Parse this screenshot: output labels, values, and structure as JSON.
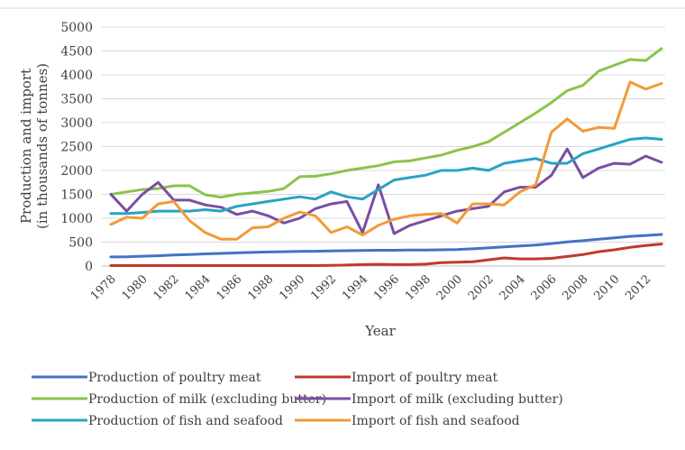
{
  "chart_data": {
    "type": "line",
    "title": "",
    "xlabel": "Year",
    "ylabel": "Production and import\n(in thousands of tonnes)",
    "ylim": [
      0,
      5000
    ],
    "y_ticks": [
      0,
      500,
      1000,
      1500,
      2000,
      2500,
      3000,
      3500,
      4000,
      4500,
      5000
    ],
    "x_tick_labels": [
      "1978",
      "1980",
      "1982",
      "1984",
      "1986",
      "1988",
      "1990",
      "1992",
      "1994",
      "1996",
      "1998",
      "2000",
      "2002",
      "2004",
      "2006",
      "2008",
      "2010",
      "2012"
    ],
    "x": [
      1978,
      1979,
      1980,
      1981,
      1982,
      1983,
      1984,
      1985,
      1986,
      1987,
      1988,
      1989,
      1990,
      1991,
      1992,
      1993,
      1994,
      1995,
      1996,
      1997,
      1998,
      1999,
      2000,
      2001,
      2002,
      2003,
      2004,
      2005,
      2006,
      2007,
      2008,
      2009,
      2010,
      2011,
      2012,
      2013
    ],
    "grid": "horizontal",
    "legend_position": "bottom",
    "series": [
      {
        "name": "Production of poultry meat",
        "color": "#4472C4",
        "values": [
          190,
          195,
          205,
          215,
          230,
          240,
          255,
          265,
          275,
          285,
          295,
          300,
          305,
          310,
          315,
          320,
          325,
          330,
          330,
          335,
          335,
          340,
          345,
          360,
          380,
          400,
          420,
          440,
          470,
          505,
          530,
          560,
          590,
          620,
          640,
          660
        ]
      },
      {
        "name": "Import of poultry meat",
        "color": "#C0392B",
        "values": [
          10,
          10,
          10,
          10,
          10,
          10,
          10,
          10,
          10,
          10,
          10,
          10,
          10,
          10,
          15,
          20,
          30,
          35,
          30,
          30,
          40,
          70,
          80,
          90,
          130,
          170,
          150,
          150,
          160,
          200,
          240,
          300,
          340,
          390,
          430,
          460
        ]
      },
      {
        "name": "Production of milk (excluding butter)",
        "color": "#8BC34A",
        "values": [
          1500,
          1550,
          1600,
          1620,
          1680,
          1680,
          1490,
          1440,
          1500,
          1530,
          1560,
          1620,
          1870,
          1880,
          1930,
          2000,
          2050,
          2100,
          2180,
          2200,
          2260,
          2320,
          2420,
          2500,
          2600,
          2800,
          3000,
          3200,
          3420,
          3670,
          3780,
          4080,
          4200,
          4320,
          4300,
          4550
        ]
      },
      {
        "name": "Import of milk (excluding butter)",
        "color": "#7B4EA3",
        "values": [
          1500,
          1150,
          1500,
          1750,
          1380,
          1380,
          1280,
          1230,
          1080,
          1150,
          1050,
          900,
          1000,
          1200,
          1300,
          1350,
          700,
          1700,
          680,
          850,
          950,
          1050,
          1150,
          1200,
          1250,
          1550,
          1650,
          1650,
          1900,
          2450,
          1850,
          2050,
          2150,
          2130,
          2300,
          2170
        ]
      },
      {
        "name": "Production of fish and seafood",
        "color": "#29A3C4",
        "values": [
          1100,
          1100,
          1120,
          1150,
          1150,
          1150,
          1180,
          1150,
          1250,
          1300,
          1350,
          1400,
          1450,
          1400,
          1550,
          1450,
          1400,
          1600,
          1800,
          1850,
          1900,
          2000,
          2000,
          2050,
          2000,
          2150,
          2200,
          2250,
          2150,
          2150,
          2350,
          2450,
          2550,
          2650,
          2680,
          2650
        ]
      },
      {
        "name": "Import of fish and seafood",
        "color": "#F29A38",
        "values": [
          870,
          1020,
          1000,
          1300,
          1350,
          950,
          700,
          560,
          560,
          800,
          820,
          1000,
          1130,
          1050,
          700,
          820,
          650,
          850,
          980,
          1050,
          1080,
          1100,
          900,
          1300,
          1300,
          1280,
          1550,
          1700,
          2800,
          3080,
          2820,
          2900,
          2880,
          3850,
          3700,
          3820
        ]
      }
    ]
  }
}
